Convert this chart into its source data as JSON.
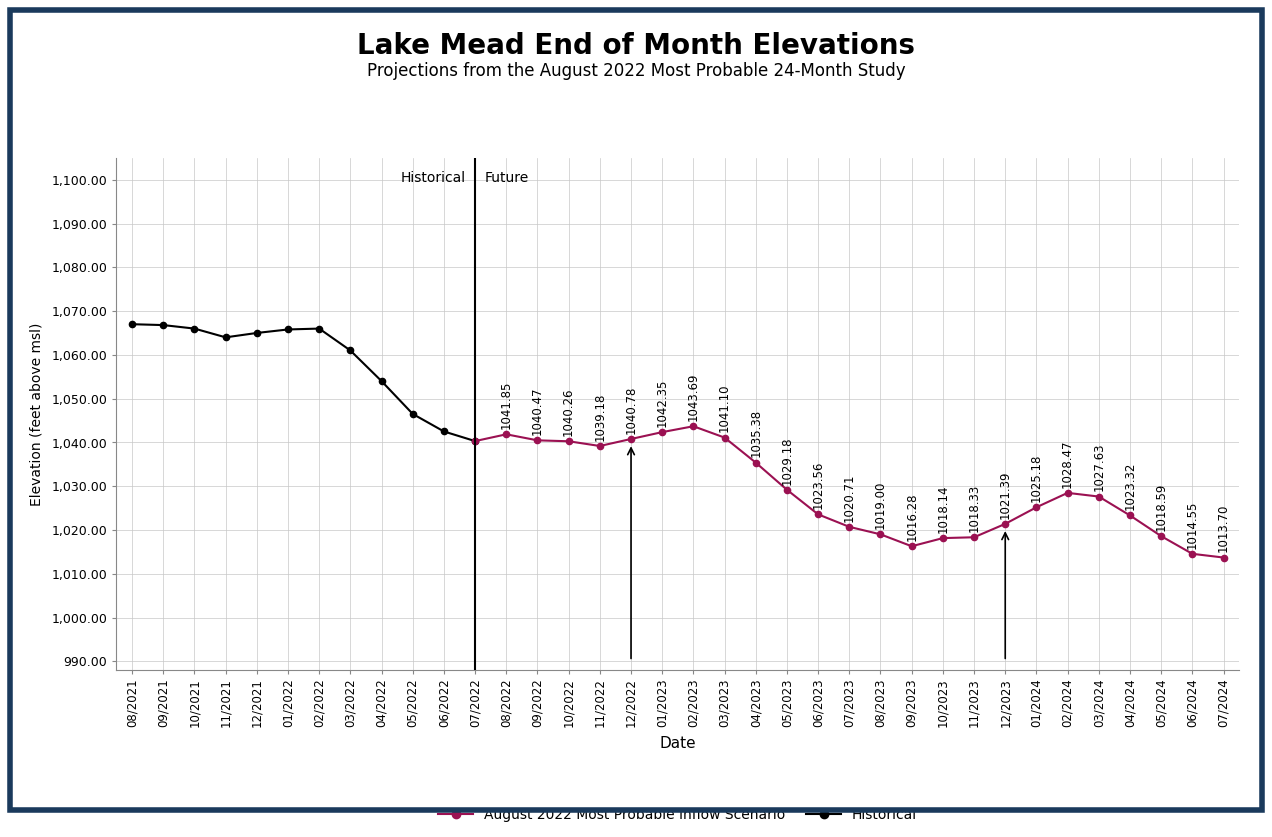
{
  "title": "Lake Mead End of Month Elevations",
  "subtitle": "Projections from the August 2022 Most Probable 24-Month Study",
  "xlabel": "Date",
  "ylabel": "Elevation (feet above msl)",
  "background_color": "#ffffff",
  "border_color": "#1a3a5c",
  "grid_color": "#c8c8c8",
  "historical_dates": [
    "08/2021",
    "09/2021",
    "10/2021",
    "11/2021",
    "12/2021",
    "01/2022",
    "02/2022",
    "03/2022",
    "04/2022",
    "05/2022",
    "06/2022",
    "07/2022"
  ],
  "historical_values": [
    1067.0,
    1066.8,
    1066.0,
    1064.0,
    1065.0,
    1065.8,
    1066.0,
    1061.0,
    1054.0,
    1046.5,
    1042.5,
    1040.3
  ],
  "projection_dates": [
    "07/2022",
    "08/2022",
    "09/2022",
    "10/2022",
    "11/2022",
    "12/2022",
    "01/2023",
    "02/2023",
    "03/2023",
    "04/2023",
    "05/2023",
    "06/2023",
    "07/2023",
    "08/2023",
    "09/2023",
    "10/2023",
    "11/2023",
    "12/2023",
    "01/2024",
    "02/2024",
    "03/2024",
    "04/2024",
    "05/2024",
    "06/2024",
    "07/2024"
  ],
  "projection_values": [
    1040.3,
    1041.85,
    1040.47,
    1040.26,
    1039.18,
    1040.78,
    1042.35,
    1043.69,
    1041.1,
    1035.38,
    1029.18,
    1023.56,
    1020.71,
    1019.0,
    1016.28,
    1018.14,
    1018.33,
    1021.39,
    1025.18,
    1028.47,
    1027.63,
    1023.32,
    1018.59,
    1014.55,
    1013.7
  ],
  "projection_labels": [
    null,
    "1041.85",
    "1040.47",
    "1040.26",
    "1039.18",
    "1040.78",
    "1042.35",
    "1043.69",
    "1041.10",
    "1035.38",
    "1029.18",
    "1023.56",
    "1020.71",
    "1019.00",
    "1016.28",
    "1018.14",
    "1018.33",
    "1021.39",
    "1025.18",
    "1028.47",
    "1027.63",
    "1023.32",
    "1018.59",
    "1014.55",
    "1013.70"
  ],
  "historical_color": "#000000",
  "projection_color": "#9b1152",
  "divider_date": "07/2022",
  "arrow1_date": "12/2022",
  "arrow2_date": "12/2023",
  "ylim_min": 988,
  "ylim_max": 1105,
  "yticks": [
    990,
    1000,
    1010,
    1020,
    1030,
    1040,
    1050,
    1060,
    1070,
    1080,
    1090,
    1100
  ],
  "ytick_labels": [
    "990.00",
    "1,000.00",
    "1,010.00",
    "1,020.00",
    "1,030.00",
    "1,040.00",
    "1,050.00",
    "1,060.00",
    "1,070.00",
    "1,080.00",
    "1,090.00",
    "1,100.00"
  ],
  "legend_proj_label": "August 2022 Most Probable Inflow Scenario",
  "legend_hist_label": "Historical",
  "historical_label": "Historical",
  "future_label": "Future",
  "title_fontsize": 20,
  "subtitle_fontsize": 12,
  "label_fontsize": 9,
  "tick_fontsize": 9,
  "annot_fontsize": 8.5
}
